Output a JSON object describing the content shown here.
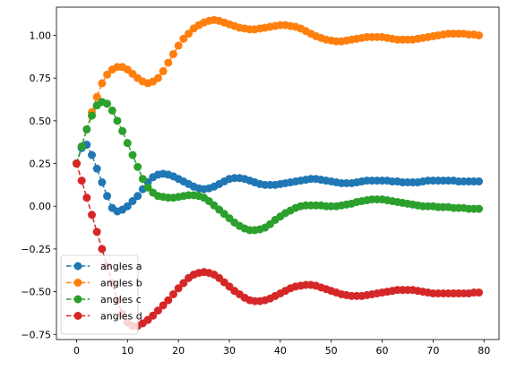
{
  "chart_data": {
    "type": "line",
    "title": "",
    "xlabel": "",
    "ylabel": "",
    "xlim": [
      -3.95,
      82.95
    ],
    "ylim": [
      -0.78,
      1.165
    ],
    "x_ticks": [
      0,
      10,
      20,
      30,
      40,
      50,
      60,
      70,
      80
    ],
    "x_tick_labels": [
      "0",
      "10",
      "20",
      "30",
      "40",
      "50",
      "60",
      "70",
      "80"
    ],
    "y_ticks": [
      -0.75,
      -0.5,
      -0.25,
      0.0,
      0.25,
      0.5,
      0.75,
      1.0
    ],
    "y_tick_labels": [
      "−0.75",
      "−0.50",
      "−0.25",
      "0.00",
      "0.25",
      "0.50",
      "0.75",
      "1.00"
    ],
    "grid": false,
    "legend_position": "lower-left",
    "marker": "circle",
    "line_style": "dashed",
    "series": [
      {
        "name": "angles a",
        "color": "#1f77b4",
        "values": [
          0.25,
          0.34,
          0.36,
          0.3,
          0.22,
          0.14,
          0.06,
          -0.01,
          -0.03,
          -0.02,
          0.0,
          0.03,
          0.06,
          0.1,
          0.14,
          0.17,
          0.185,
          0.19,
          0.185,
          0.175,
          0.16,
          0.145,
          0.13,
          0.115,
          0.105,
          0.1,
          0.105,
          0.115,
          0.13,
          0.145,
          0.16,
          0.165,
          0.165,
          0.16,
          0.15,
          0.14,
          0.13,
          0.125,
          0.125,
          0.125,
          0.13,
          0.135,
          0.14,
          0.145,
          0.15,
          0.155,
          0.16,
          0.16,
          0.155,
          0.15,
          0.145,
          0.14,
          0.135,
          0.135,
          0.135,
          0.14,
          0.145,
          0.15,
          0.15,
          0.15,
          0.15,
          0.15,
          0.145,
          0.145,
          0.14,
          0.14,
          0.14,
          0.14,
          0.145,
          0.15,
          0.15,
          0.15,
          0.15,
          0.15,
          0.15,
          0.145,
          0.145,
          0.145,
          0.145,
          0.145
        ]
      },
      {
        "name": "angles b",
        "color": "#ff7f0e",
        "values": [
          0.25,
          0.35,
          0.45,
          0.55,
          0.64,
          0.72,
          0.77,
          0.8,
          0.815,
          0.815,
          0.8,
          0.775,
          0.75,
          0.73,
          0.72,
          0.73,
          0.75,
          0.79,
          0.84,
          0.89,
          0.94,
          0.98,
          1.01,
          1.04,
          1.06,
          1.075,
          1.085,
          1.09,
          1.085,
          1.075,
          1.065,
          1.055,
          1.045,
          1.04,
          1.035,
          1.035,
          1.04,
          1.045,
          1.05,
          1.055,
          1.06,
          1.06,
          1.055,
          1.05,
          1.04,
          1.025,
          1.01,
          0.995,
          0.985,
          0.975,
          0.97,
          0.965,
          0.965,
          0.97,
          0.975,
          0.98,
          0.985,
          0.99,
          0.99,
          0.99,
          0.99,
          0.985,
          0.98,
          0.975,
          0.975,
          0.975,
          0.975,
          0.98,
          0.985,
          0.99,
          0.995,
          1.0,
          1.005,
          1.01,
          1.01,
          1.01,
          1.01,
          1.005,
          1.005,
          1.0
        ]
      },
      {
        "name": "angles c",
        "color": "#2ca02c",
        "values": [
          0.25,
          0.35,
          0.45,
          0.53,
          0.59,
          0.61,
          0.6,
          0.56,
          0.5,
          0.44,
          0.37,
          0.3,
          0.23,
          0.16,
          0.11,
          0.08,
          0.06,
          0.055,
          0.05,
          0.05,
          0.055,
          0.06,
          0.065,
          0.065,
          0.06,
          0.05,
          0.03,
          0.005,
          -0.02,
          -0.045,
          -0.07,
          -0.095,
          -0.115,
          -0.13,
          -0.14,
          -0.14,
          -0.135,
          -0.125,
          -0.105,
          -0.08,
          -0.06,
          -0.04,
          -0.025,
          -0.01,
          0.0,
          0.005,
          0.005,
          0.005,
          0.005,
          0.0,
          0.0,
          0.0,
          0.005,
          0.01,
          0.015,
          0.025,
          0.03,
          0.035,
          0.04,
          0.04,
          0.04,
          0.035,
          0.03,
          0.025,
          0.02,
          0.015,
          0.01,
          0.005,
          0.0,
          0.0,
          0.0,
          -0.005,
          -0.005,
          -0.005,
          -0.01,
          -0.01,
          -0.01,
          -0.015,
          -0.015,
          -0.015
        ]
      },
      {
        "name": "angles d",
        "color": "#d62728",
        "values": [
          0.25,
          0.15,
          0.05,
          -0.05,
          -0.15,
          -0.25,
          -0.35,
          -0.45,
          -0.55,
          -0.63,
          -0.68,
          -0.7,
          -0.7,
          -0.685,
          -0.665,
          -0.64,
          -0.61,
          -0.58,
          -0.55,
          -0.515,
          -0.48,
          -0.45,
          -0.42,
          -0.4,
          -0.39,
          -0.385,
          -0.39,
          -0.4,
          -0.42,
          -0.445,
          -0.47,
          -0.495,
          -0.515,
          -0.535,
          -0.55,
          -0.555,
          -0.555,
          -0.55,
          -0.54,
          -0.525,
          -0.51,
          -0.495,
          -0.48,
          -0.47,
          -0.465,
          -0.46,
          -0.46,
          -0.465,
          -0.475,
          -0.485,
          -0.495,
          -0.505,
          -0.515,
          -0.52,
          -0.525,
          -0.525,
          -0.525,
          -0.52,
          -0.515,
          -0.51,
          -0.505,
          -0.5,
          -0.495,
          -0.49,
          -0.49,
          -0.49,
          -0.49,
          -0.495,
          -0.5,
          -0.505,
          -0.51,
          -0.51,
          -0.51,
          -0.51,
          -0.51,
          -0.51,
          -0.51,
          -0.51,
          -0.505,
          -0.505
        ]
      }
    ]
  }
}
